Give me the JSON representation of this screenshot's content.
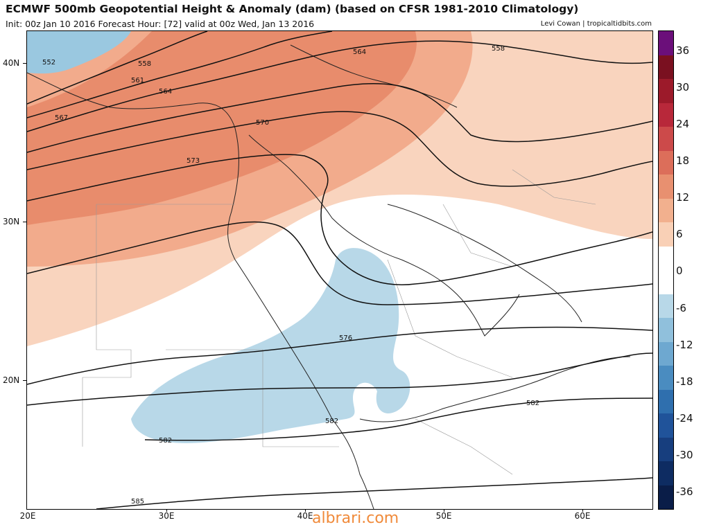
{
  "header": {
    "title": "ECMWF 500mb Geopotential Height & Anomaly (dam) (based on CFSR 1981-2010 Climatology)",
    "subtitle": "Init: 00z Jan 10 2016   Forecast Hour: [72]   valid at 00z Wed, Jan 13 2016",
    "credit": "Levi Cowan | tropicaltidbits.com"
  },
  "axes": {
    "lat_labels": [
      "40N",
      "30N",
      "20N"
    ],
    "lon_labels": [
      "20E",
      "30E",
      "40E",
      "50E",
      "60E"
    ]
  },
  "contours": {
    "labels": [
      "552",
      "558",
      "561",
      "564",
      "567",
      "570",
      "573",
      "576",
      "582",
      "582",
      "582",
      "585",
      "564",
      "558"
    ]
  },
  "colorbar": {
    "labels": [
      "36",
      "30",
      "24",
      "18",
      "12",
      "6",
      "0",
      "-6",
      "-12",
      "-18",
      "-24",
      "-30",
      "-36"
    ],
    "colors": [
      "#6b0f7a",
      "#7a1020",
      "#9c1a2a",
      "#b8283a",
      "#cc4a4a",
      "#dc6e5a",
      "#e89070",
      "#f2b08e",
      "#f9d0b6",
      "#ffffff",
      "#ffffff",
      "#b8d8e8",
      "#90c0dc",
      "#6ea8d0",
      "#4a8cc0",
      "#2f6fae",
      "#20539a",
      "#173e7e",
      "#0e2c62",
      "#0a1d48"
    ]
  },
  "watermark": "albrari.com"
}
